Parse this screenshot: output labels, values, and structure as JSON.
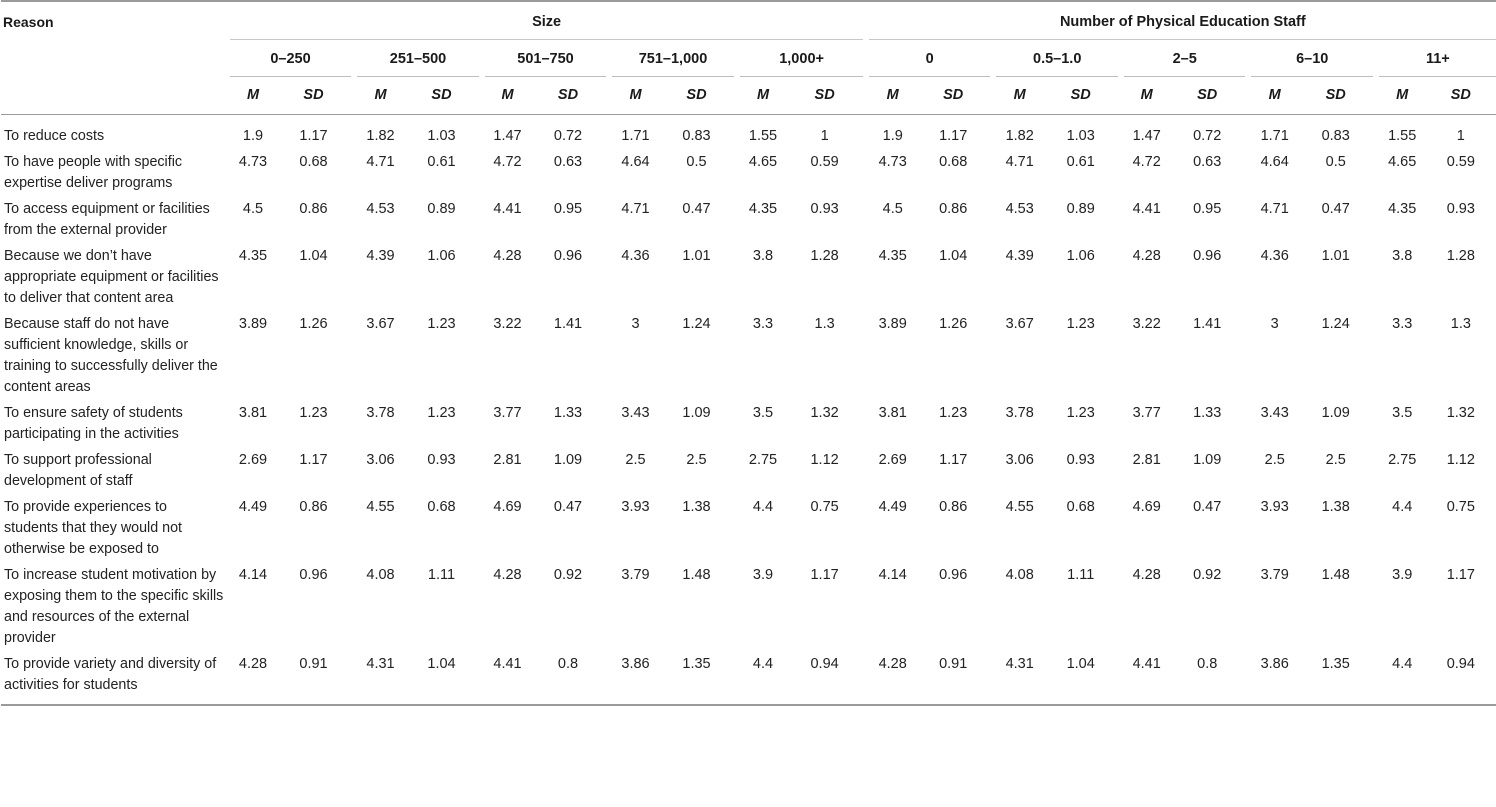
{
  "header": {
    "reason_label": "Reason",
    "group_size": "Size",
    "group_staff": "Number of Physical Education Staff",
    "size_cols": [
      "0–250",
      "251–500",
      "501–750",
      "751–1,000",
      "1,000+"
    ],
    "staff_cols": [
      "0",
      "0.5–1.0",
      "2–5",
      "6–10",
      "11+"
    ],
    "m_label": "M",
    "sd_label": "SD"
  },
  "rows": [
    {
      "reason": "To reduce costs",
      "values": [
        "1.9",
        "1.17",
        "1.82",
        "1.03",
        "1.47",
        "0.72",
        "1.71",
        "0.83",
        "1.55",
        "1",
        "1.9",
        "1.17",
        "1.82",
        "1.03",
        "1.47",
        "0.72",
        "1.71",
        "0.83",
        "1.55",
        "1"
      ]
    },
    {
      "reason": "To have people with specific expertise deliver programs",
      "values": [
        "4.73",
        "0.68",
        "4.71",
        "0.61",
        "4.72",
        "0.63",
        "4.64",
        "0.5",
        "4.65",
        "0.59",
        "4.73",
        "0.68",
        "4.71",
        "0.61",
        "4.72",
        "0.63",
        "4.64",
        "0.5",
        "4.65",
        "0.59"
      ]
    },
    {
      "reason": "To access equipment or facilities from the external provider",
      "values": [
        "4.5",
        "0.86",
        "4.53",
        "0.89",
        "4.41",
        "0.95",
        "4.71",
        "0.47",
        "4.35",
        "0.93",
        "4.5",
        "0.86",
        "4.53",
        "0.89",
        "4.41",
        "0.95",
        "4.71",
        "0.47",
        "4.35",
        "0.93"
      ]
    },
    {
      "reason": "Because we don’t have appropriate equipment or facilities to deliver that content area",
      "values": [
        "4.35",
        "1.04",
        "4.39",
        "1.06",
        "4.28",
        "0.96",
        "4.36",
        "1.01",
        "3.8",
        "1.28",
        "4.35",
        "1.04",
        "4.39",
        "1.06",
        "4.28",
        "0.96",
        "4.36",
        "1.01",
        "3.8",
        "1.28"
      ]
    },
    {
      "reason": "Because staff do not have sufficient knowledge, skills or training to successfully deliver the content areas",
      "values": [
        "3.89",
        "1.26",
        "3.67",
        "1.23",
        "3.22",
        "1.41",
        "3",
        "1.24",
        "3.3",
        "1.3",
        "3.89",
        "1.26",
        "3.67",
        "1.23",
        "3.22",
        "1.41",
        "3",
        "1.24",
        "3.3",
        "1.3"
      ]
    },
    {
      "reason": "To ensure safety of students participating in the activities",
      "values": [
        "3.81",
        "1.23",
        "3.78",
        "1.23",
        "3.77",
        "1.33",
        "3.43",
        "1.09",
        "3.5",
        "1.32",
        "3.81",
        "1.23",
        "3.78",
        "1.23",
        "3.77",
        "1.33",
        "3.43",
        "1.09",
        "3.5",
        "1.32"
      ]
    },
    {
      "reason": "To support professional development of staff",
      "values": [
        "2.69",
        "1.17",
        "3.06",
        "0.93",
        "2.81",
        "1.09",
        "2.5",
        "2.5",
        "2.75",
        "1.12",
        "2.69",
        "1.17",
        "3.06",
        "0.93",
        "2.81",
        "1.09",
        "2.5",
        "2.5",
        "2.75",
        "1.12"
      ]
    },
    {
      "reason": "To provide experiences to students that they would not otherwise be exposed to",
      "values": [
        "4.49",
        "0.86",
        "4.55",
        "0.68",
        "4.69",
        "0.47",
        "3.93",
        "1.38",
        "4.4",
        "0.75",
        "4.49",
        "0.86",
        "4.55",
        "0.68",
        "4.69",
        "0.47",
        "3.93",
        "1.38",
        "4.4",
        "0.75"
      ]
    },
    {
      "reason": "To increase student motivation by exposing them to the specific skills and resources of the external provider",
      "values": [
        "4.14",
        "0.96",
        "4.08",
        "1.11",
        "4.28",
        "0.92",
        "3.79",
        "1.48",
        "3.9",
        "1.17",
        "4.14",
        "0.96",
        "4.08",
        "1.11",
        "4.28",
        "0.92",
        "3.79",
        "1.48",
        "3.9",
        "1.17"
      ]
    },
    {
      "reason": "To provide variety and diversity of activities for students",
      "values": [
        "4.28",
        "0.91",
        "4.31",
        "1.04",
        "4.41",
        "0.8",
        "3.86",
        "1.35",
        "4.4",
        "0.94",
        "4.28",
        "0.91",
        "4.31",
        "1.04",
        "4.41",
        "0.8",
        "3.86",
        "1.35",
        "4.4",
        "0.94"
      ]
    }
  ]
}
